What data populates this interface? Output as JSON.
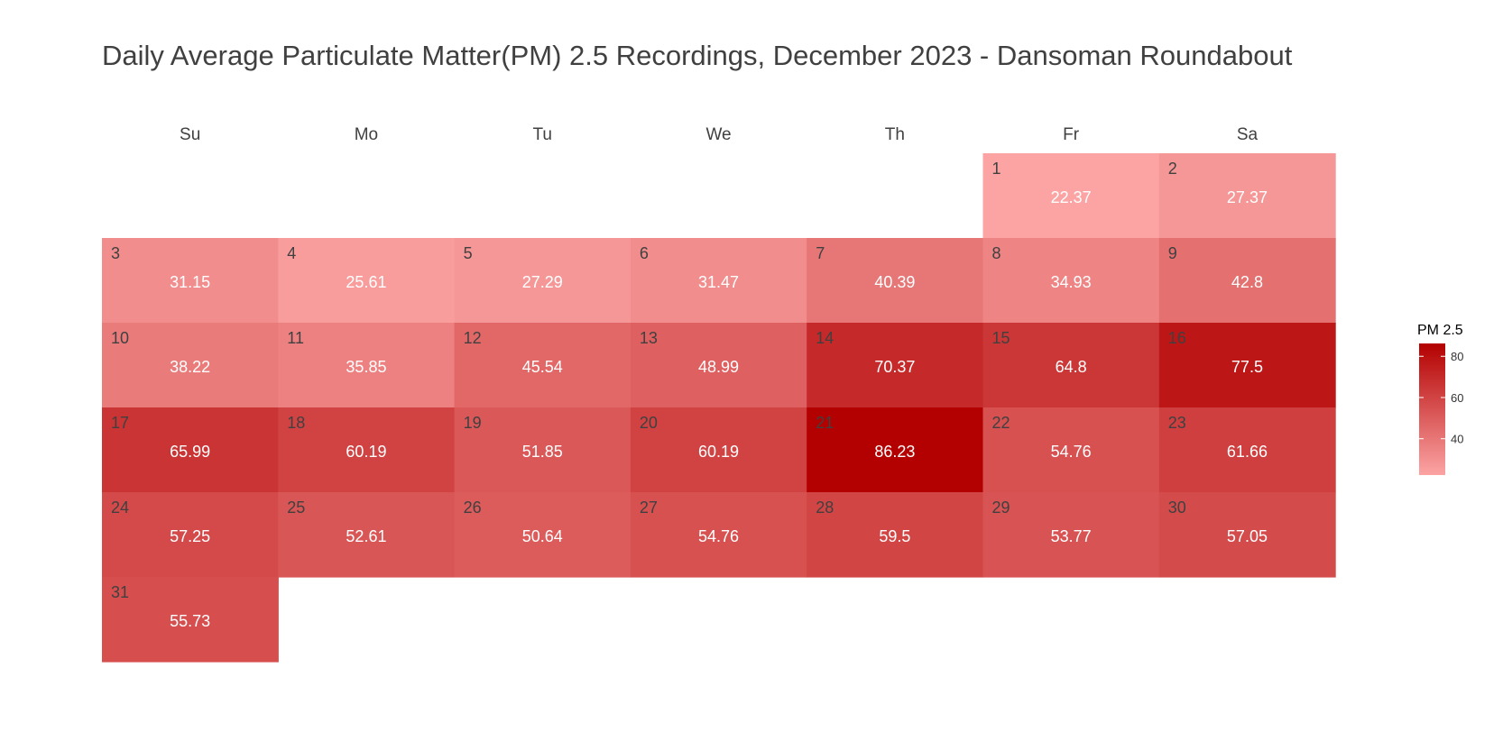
{
  "chart_data": {
    "type": "heatmap",
    "title": "Daily Average Particulate Matter(PM) 2.5 Recordings, December 2023 - Dansoman Roundabout",
    "weekdays": [
      "Su",
      "Mo",
      "Tu",
      "We",
      "Th",
      "Fr",
      "Sa"
    ],
    "first_weekday_index": 5,
    "days": [
      1,
      2,
      3,
      4,
      5,
      6,
      7,
      8,
      9,
      10,
      11,
      12,
      13,
      14,
      15,
      16,
      17,
      18,
      19,
      20,
      21,
      22,
      23,
      24,
      25,
      26,
      27,
      28,
      29,
      30,
      31
    ],
    "values": [
      22.37,
      27.37,
      31.15,
      25.61,
      27.29,
      31.47,
      40.39,
      34.93,
      42.8,
      38.22,
      35.85,
      45.54,
      48.99,
      70.37,
      64.8,
      77.5,
      65.99,
      60.19,
      51.85,
      60.19,
      86.23,
      54.76,
      61.66,
      57.25,
      52.61,
      50.64,
      54.76,
      59.5,
      53.77,
      57.05,
      55.73
    ],
    "value_labels": [
      "22.37",
      "27.37",
      "31.15",
      "25.61",
      "27.29",
      "31.47",
      "40.39",
      "34.93",
      "42.8",
      "38.22",
      "35.85",
      "45.54",
      "48.99",
      "70.37",
      "64.8",
      "77.5",
      "65.99",
      "60.19",
      "51.85",
      "60.19",
      "86.23",
      "54.76",
      "61.66",
      "57.25",
      "52.61",
      "50.64",
      "54.76",
      "59.5",
      "53.77",
      "57.05",
      "55.73"
    ],
    "legend": {
      "title": "PM 2.5",
      "placement": "right",
      "ticks": [
        40,
        60,
        80
      ],
      "tick_labels": [
        "40",
        "60",
        "80"
      ]
    },
    "colors": {
      "low": "#fca4a4",
      "high": "#b30000",
      "day_number_text": "#404040",
      "value_text": "#ffffff"
    },
    "scale_range": [
      22.37,
      86.23
    ]
  }
}
